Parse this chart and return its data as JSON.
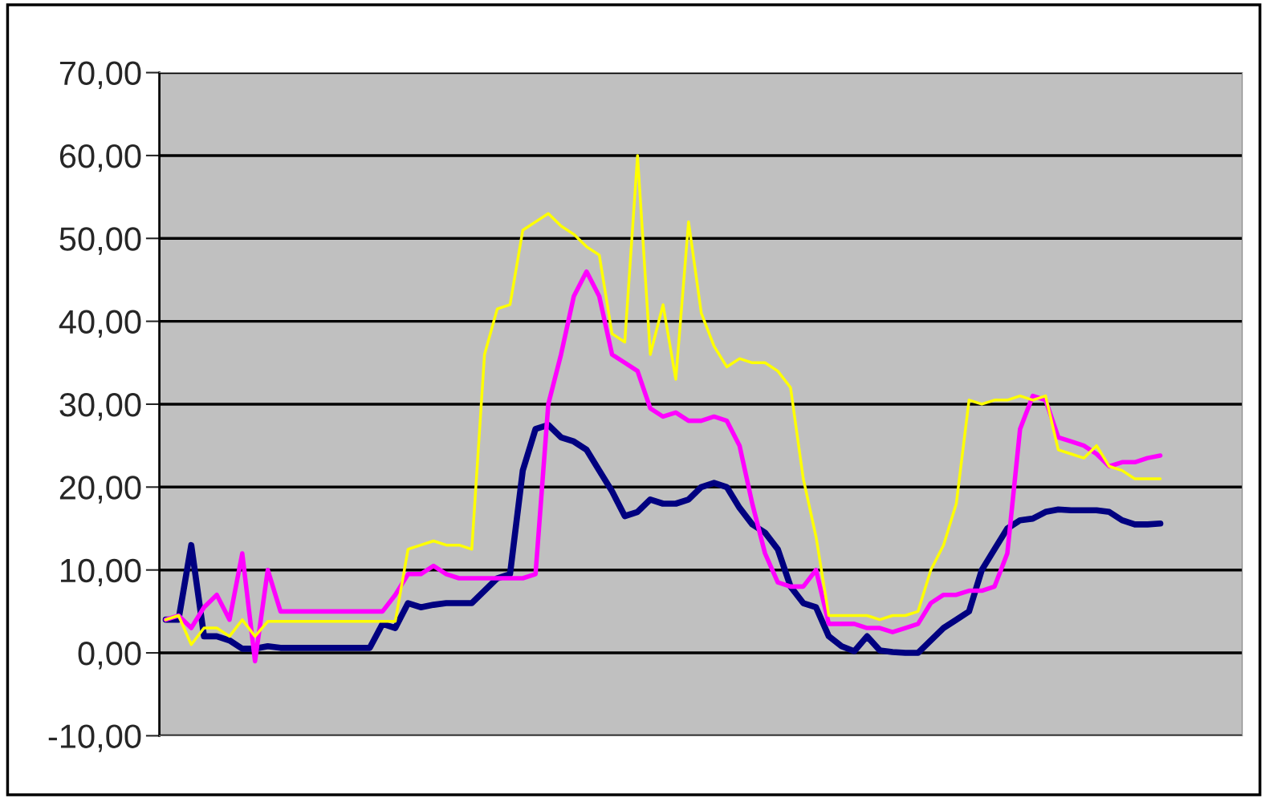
{
  "chart_data": {
    "type": "line",
    "categories": [
      null,
      null,
      null,
      null,
      null,
      null,
      null,
      null,
      null,
      null,
      null,
      null,
      null,
      null,
      null,
      null,
      null,
      null,
      null,
      null,
      null,
      null,
      null,
      null,
      null,
      null,
      null,
      null,
      null,
      null,
      null,
      null,
      null,
      null,
      null,
      null,
      null,
      null,
      null,
      null,
      null,
      null,
      null,
      null,
      null,
      null,
      null,
      null,
      null,
      null,
      null,
      null,
      null,
      null,
      null,
      null,
      null,
      null,
      null,
      null,
      null,
      null,
      null,
      null,
      null,
      null,
      null,
      null,
      null,
      null,
      null,
      null,
      null,
      null,
      null,
      null,
      null,
      null,
      null
    ],
    "series": [
      {
        "color": "#000080",
        "values": [
          4,
          4,
          13,
          2,
          2,
          1.5,
          0.5,
          0.5,
          0.8,
          0.6,
          0.6,
          0.6,
          0.6,
          0.6,
          0.6,
          0.6,
          0.6,
          3.5,
          3,
          6,
          5.5,
          5.8,
          6,
          6,
          6,
          7.5,
          9,
          9.5,
          22,
          27,
          27.5,
          26,
          25.5,
          24.5,
          22,
          19.5,
          16.5,
          17,
          18.5,
          18,
          18,
          18.5,
          20,
          20.5,
          20,
          17.5,
          15.5,
          14.5,
          12.5,
          8,
          6,
          5.5,
          2,
          0.8,
          0.2,
          2,
          0.3,
          0.1,
          0,
          0,
          1.5,
          3,
          4,
          5,
          10,
          12.5,
          15,
          16,
          16.2,
          17,
          17.3,
          17.2,
          17.2,
          17.2,
          17,
          16,
          15.5,
          15.5,
          15.6
        ]
      },
      {
        "color": "#ff00ff",
        "values": [
          4,
          4.5,
          3,
          5.5,
          7,
          4,
          12,
          -1,
          10,
          5,
          5,
          5,
          5,
          5,
          5,
          5,
          5,
          5,
          7,
          9.5,
          9.5,
          10.5,
          9.5,
          9,
          9,
          9,
          9,
          9,
          9,
          9.5,
          30,
          36,
          43,
          46,
          43,
          36,
          35,
          34,
          29.5,
          28.5,
          29,
          28,
          28,
          28.5,
          28,
          25,
          18,
          12,
          8.5,
          8,
          8,
          10,
          3.5,
          3.5,
          3.5,
          3,
          3,
          2.5,
          3,
          3.5,
          6,
          7,
          7,
          7.5,
          7.5,
          8,
          12,
          27,
          31,
          30.5,
          26,
          25.5,
          25,
          24,
          22.5,
          23,
          23,
          23.5,
          23.8
        ]
      },
      {
        "color": "#ffff00",
        "values": [
          4,
          4.5,
          1,
          3,
          3,
          2,
          4,
          2,
          3.8,
          3.8,
          3.8,
          3.8,
          3.8,
          3.8,
          3.8,
          3.8,
          3.8,
          3.8,
          3.8,
          12.5,
          13,
          13.5,
          13,
          13,
          12.5,
          36,
          41.5,
          42,
          51,
          52,
          53,
          51.5,
          50.5,
          49,
          48,
          38.5,
          37.5,
          60,
          36,
          42,
          33,
          52,
          41,
          37,
          34.5,
          35.5,
          35,
          35,
          34,
          32,
          21,
          14,
          4.5,
          4.5,
          4.5,
          4.5,
          4,
          4.5,
          4.5,
          5,
          10,
          13,
          18,
          30.5,
          30,
          30.5,
          30.5,
          31,
          30.5,
          31,
          24.5,
          24,
          23.5,
          25,
          22.5,
          22,
          21,
          21,
          21
        ]
      }
    ],
    "ylim": [
      -10,
      70
    ],
    "yticks": [
      {
        "value": -10,
        "label": "-10,00"
      },
      {
        "value": 0,
        "label": "0,00"
      },
      {
        "value": 10,
        "label": "10,00"
      },
      {
        "value": 20,
        "label": "20,00"
      },
      {
        "value": 30,
        "label": "30,00"
      },
      {
        "value": 40,
        "label": "40,00"
      },
      {
        "value": 50,
        "label": "50,00"
      },
      {
        "value": 60,
        "label": "60,00"
      },
      {
        "value": 70,
        "label": "70,00"
      }
    ],
    "grid": "y",
    "tick_labels": "y"
  }
}
